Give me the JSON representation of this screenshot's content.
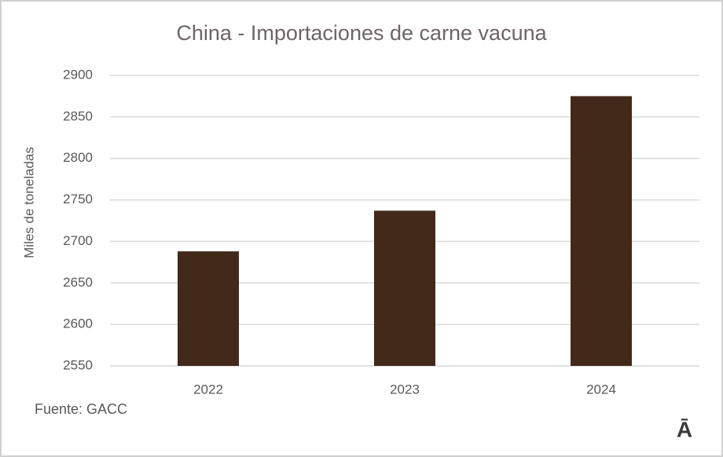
{
  "chart_data": {
    "type": "bar",
    "title": "China - Importaciones de carne vacuna",
    "y_label": "Miles de toneladas",
    "categories": [
      "2022",
      "2023",
      "2024"
    ],
    "values": [
      2688,
      2737,
      2875
    ],
    "color": "#43291a",
    "ylim": [
      2550,
      2900
    ],
    "yticks": [
      2550,
      2600,
      2650,
      2700,
      2750,
      2800,
      2850,
      2900
    ],
    "grid": true,
    "source": "Fuente: GACC",
    "logo": "Ā"
  }
}
